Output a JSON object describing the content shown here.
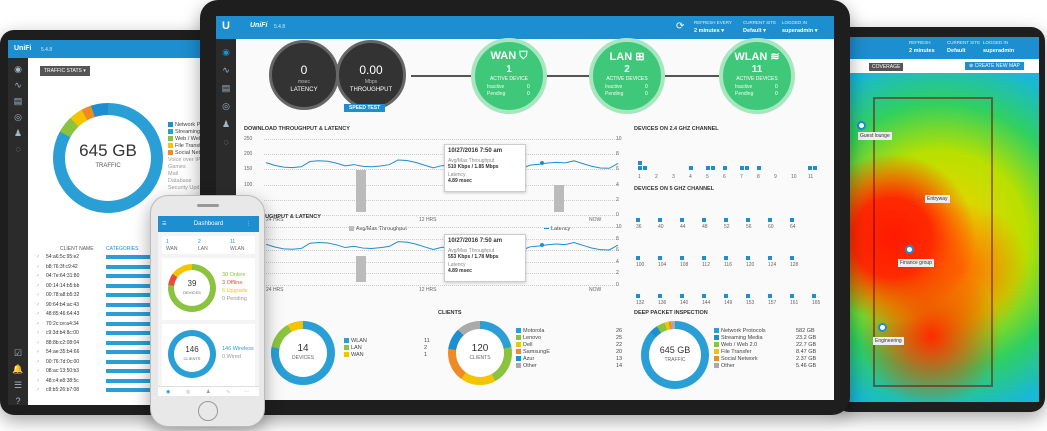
{
  "main": {
    "logo": "UniFi",
    "version": "5.4.8",
    "header": [
      {
        "label": "REFRESH EVERY",
        "value": "2 minutes"
      },
      {
        "label": "CURRENT SITE",
        "value": "Default"
      },
      {
        "label": "LOGGED IN",
        "value": "superadmin"
      }
    ],
    "latency": {
      "value": "0",
      "unit": "msec",
      "label": "LATENCY"
    },
    "throughput": {
      "value": "0.00",
      "unit": "Mbps",
      "label": "THROUGHPUT"
    },
    "speed_test": "SPEED TEST",
    "wan": {
      "name": "WAN",
      "count": "1",
      "label": "ACTIVE DEVICE",
      "inactive_label": "Inactive",
      "inactive": "0",
      "pending_label": "Pending",
      "pending": "0"
    },
    "lan": {
      "name": "LAN",
      "count": "2",
      "label": "ACTIVE DEVICES",
      "inactive_label": "Inactive",
      "inactive": "0",
      "pending_label": "Pending",
      "pending": "0"
    },
    "wlan": {
      "name": "WLAN",
      "count": "11",
      "label": "ACTIVE DEVICES",
      "inactive_label": "Inactive",
      "inactive": "0",
      "pending_label": "Pending",
      "pending": "0"
    },
    "chart1": {
      "title": "DOWNLOAD THROUGHPUT & LATENCY",
      "yticks": [
        "250",
        "200",
        "150",
        "100",
        "50",
        "0"
      ],
      "rticks": [
        "10",
        "8",
        "6",
        "4",
        "2",
        "0"
      ],
      "x_labels": [
        "24 HRS",
        "12 HRS",
        "NOW"
      ],
      "legend_bar": "Avg/Max Throughput",
      "legend_line": "Latency",
      "ylabel": "Throughput (Mbps)",
      "rlabel": "Latency (msec)",
      "tooltip": {
        "date": "10/27/2016 7:50 am",
        "label1": "Avg/Max Throughput",
        "value1": "510 Kbps / 1.85 Mbps",
        "label2": "Latency",
        "value2": "4.89 msec"
      }
    },
    "chart2": {
      "title": "D THROUGHPUT & LATENCY",
      "yticks": [
        "250",
        "200",
        "150",
        "100",
        "50",
        "0"
      ],
      "rticks": [
        "10",
        "8",
        "6",
        "4",
        "2",
        "0"
      ],
      "x_labels": [
        "24 HRS",
        "12 HRS",
        "NOW"
      ],
      "ylabel": "Throughput (Mbps)",
      "rlabel": "Latency (msec)",
      "tooltip": {
        "date": "10/27/2016 7:50 am",
        "label1": "Avg/Max Throughput",
        "value1": "553 Kbps / 1.78 Mbps",
        "label2": "Latency",
        "value2": "4.89 msec"
      }
    },
    "ch24": {
      "title": "DEVICES ON 2.4 GHZ CHANNEL",
      "channels": [
        "1",
        "2",
        "3",
        "4",
        "5",
        "6",
        "7",
        "8",
        "9",
        "10",
        "11"
      ],
      "ylabel": "Devices / Channel"
    },
    "ch5": {
      "title": "DEVICES ON 5 GHZ CHANNEL",
      "row1": [
        "36",
        "40",
        "44",
        "48",
        "52",
        "56",
        "60",
        "64"
      ],
      "row2": [
        "100",
        "104",
        "108",
        "112",
        "116",
        "120",
        "124",
        "128"
      ],
      "row3": [
        "132",
        "136",
        "140",
        "144",
        "149",
        "153",
        "157",
        "161",
        "165"
      ]
    },
    "devices": {
      "title": "S",
      "count": "14",
      "sub": "DEVICES",
      "rows": [
        {
          "name": "WLAN",
          "value": "11"
        },
        {
          "name": "LAN",
          "value": "2"
        },
        {
          "name": "WAN",
          "value": "1"
        }
      ]
    },
    "clients": {
      "title": "CLIENTS",
      "count": "120",
      "sub": "CLIENTS",
      "rows": [
        {
          "name": "Motorola",
          "value": "26"
        },
        {
          "name": "Lenovo",
          "value": "25"
        },
        {
          "name": "Dell",
          "value": "22"
        },
        {
          "name": "SamsungE",
          "value": "20"
        },
        {
          "name": "Azur",
          "value": "13"
        },
        {
          "name": "Other",
          "value": "14"
        }
      ]
    },
    "dpi": {
      "title": "DEEP PACKET INSPECTION",
      "value": "645 GB",
      "sub": "TRAFFIC",
      "rows": [
        {
          "name": "Network Protocols",
          "value": "582 GB"
        },
        {
          "name": "Streaming Media",
          "value": "23.2 GB"
        },
        {
          "name": "Web / Web 2.0",
          "value": "22.7 GB"
        },
        {
          "name": "File Transfer",
          "value": "8.47 GB"
        },
        {
          "name": "Social Network",
          "value": "2.37 GB"
        },
        {
          "name": "Other",
          "value": "5.46 GB"
        }
      ]
    }
  },
  "left": {
    "logo": "UniFi",
    "version": "5.4.8",
    "filter": "TRAFFIC STATS",
    "value": "645 GB",
    "label": "TRAFFIC",
    "legend": [
      "Network Prot",
      "Streaming M",
      "Web / Web 2",
      "File Transfer",
      "Social Netwo",
      "Voice over IP",
      "Games",
      "Mail",
      "Database",
      "Security Upd"
    ],
    "columns": [
      "CLIENT NAME",
      "CATEGORIES"
    ],
    "rows": [
      "54:a6:5c:95:e2",
      "b8:76:3f:c9:42",
      "04:7e:64:31:80",
      "00:14:14:b5:bb",
      "00:78:a8:b5:32",
      "90:64:b4:ac:43",
      "48:85:46:64:43",
      "70:2c:ce:a4:34",
      "c9:3d:b4:8c:00",
      "88:8b:c2:08:04",
      "54:ae:35:b4:66",
      "00:76:7d:0c:00",
      "08:ac:13:50:b3",
      "48:c4:e8:38:5c",
      "c8:b5:26:b7:08"
    ]
  },
  "phone": {
    "title": "Dashboard",
    "stats": [
      {
        "v": "1",
        "l": "WAN"
      },
      {
        "v": "2",
        "l": "LAN"
      },
      {
        "v": "11",
        "l": "WLAN"
      }
    ],
    "dev_count": "39",
    "dev_label": "DEVICES",
    "dev_legend": [
      "30 Online",
      "3 Offline",
      "6 Upgrade",
      "0 Pending"
    ],
    "cli_count": "146",
    "cli_label": "CLIENTS",
    "cli_legend": [
      "146 Wireless",
      "0 Wired"
    ]
  },
  "right": {
    "header": [
      {
        "label": "REFRESH",
        "value": "2 minutes"
      },
      {
        "label": "CURRENT SITE",
        "value": "Default"
      },
      {
        "label": "LOGGED IN",
        "value": "superadmin"
      }
    ],
    "tab": "COVERAGE",
    "button": "CREATE NEW MAP",
    "aps": [
      "Guest lounge",
      "Entryway",
      "Main",
      "Finance group",
      "Engineering"
    ]
  }
}
